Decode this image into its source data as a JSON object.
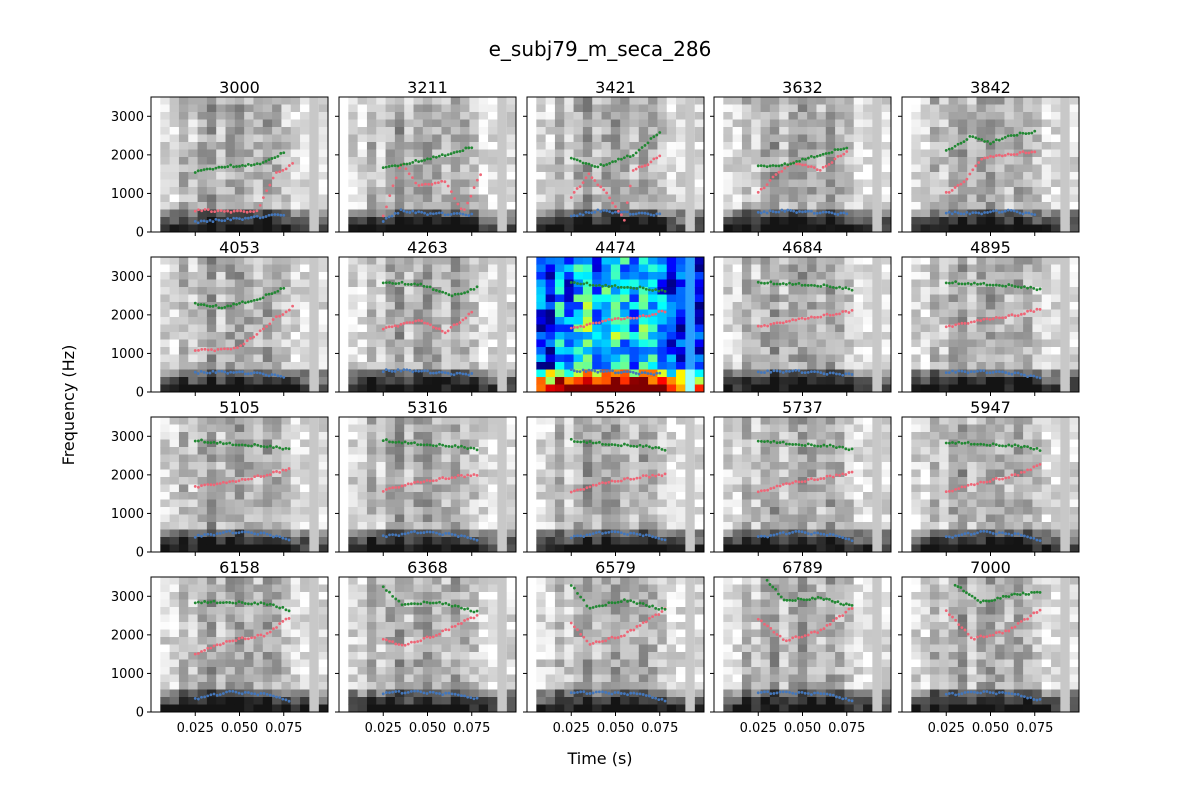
{
  "figure": {
    "title": "e_subj79_m_seca_286",
    "xlabel": "Time (s)",
    "ylabel": "Frequency (Hz)"
  },
  "chart_data": {
    "type": "scatter",
    "layout": "small-multiples 4x5, shared axes",
    "xlim": [
      0.0,
      0.1
    ],
    "ylim": [
      0,
      3500
    ],
    "xticks": [
      "0.025",
      "0.050",
      "0.075"
    ],
    "yticks": [
      "0",
      "1000",
      "2000",
      "3000"
    ],
    "xtick_values": [
      0.025,
      0.05,
      0.075
    ],
    "ytick_values": [
      0,
      1000,
      2000,
      3000
    ],
    "background": "spectrogram (grayscale; panel 4474 in jet colormap)",
    "series_colors": {
      "F1": "#4477bb",
      "F2": "#ee6677",
      "F3": "#228833"
    },
    "highlighted_panel": "4474",
    "panels": [
      {
        "label": "3000",
        "F1": [
          [
            0.025,
            260
          ],
          [
            0.04,
            310
          ],
          [
            0.06,
            380
          ],
          [
            0.075,
            460
          ]
        ],
        "F2": [
          [
            0.025,
            560
          ],
          [
            0.045,
            540
          ],
          [
            0.06,
            520
          ],
          [
            0.07,
            1500
          ],
          [
            0.08,
            1750
          ]
        ],
        "F3": [
          [
            0.025,
            1550
          ],
          [
            0.04,
            1700
          ],
          [
            0.06,
            1750
          ],
          [
            0.075,
            2050
          ]
        ]
      },
      {
        "label": "3211",
        "F1": [
          [
            0.025,
            300
          ],
          [
            0.035,
            550
          ],
          [
            0.05,
            480
          ],
          [
            0.075,
            450
          ]
        ],
        "F2": [
          [
            0.025,
            400
          ],
          [
            0.035,
            1800
          ],
          [
            0.045,
            1200
          ],
          [
            0.06,
            1300
          ],
          [
            0.07,
            500
          ],
          [
            0.08,
            1500
          ]
        ],
        "F3": [
          [
            0.025,
            1650
          ],
          [
            0.04,
            1800
          ],
          [
            0.06,
            2000
          ],
          [
            0.075,
            2200
          ]
        ]
      },
      {
        "label": "3421",
        "F1": [
          [
            0.025,
            400
          ],
          [
            0.04,
            550
          ],
          [
            0.06,
            480
          ],
          [
            0.075,
            450
          ]
        ],
        "F2": [
          [
            0.025,
            900
          ],
          [
            0.035,
            1500
          ],
          [
            0.045,
            1000
          ],
          [
            0.055,
            300
          ],
          [
            0.06,
            1600
          ],
          [
            0.07,
            1800
          ],
          [
            0.075,
            2000
          ]
        ],
        "F3": [
          [
            0.025,
            1900
          ],
          [
            0.04,
            1700
          ],
          [
            0.06,
            2000
          ],
          [
            0.075,
            2600
          ]
        ]
      },
      {
        "label": "3632",
        "F1": [
          [
            0.025,
            500
          ],
          [
            0.04,
            550
          ],
          [
            0.06,
            500
          ],
          [
            0.075,
            470
          ]
        ],
        "F2": [
          [
            0.025,
            1000
          ],
          [
            0.035,
            1500
          ],
          [
            0.045,
            1800
          ],
          [
            0.06,
            1600
          ],
          [
            0.075,
            2100
          ]
        ],
        "F3": [
          [
            0.025,
            1700
          ],
          [
            0.04,
            1750
          ],
          [
            0.06,
            2000
          ],
          [
            0.075,
            2200
          ]
        ]
      },
      {
        "label": "3842",
        "F1": [
          [
            0.025,
            500
          ],
          [
            0.04,
            480
          ],
          [
            0.06,
            550
          ],
          [
            0.075,
            450
          ]
        ],
        "F2": [
          [
            0.025,
            1000
          ],
          [
            0.035,
            1300
          ],
          [
            0.045,
            1900
          ],
          [
            0.06,
            2000
          ],
          [
            0.075,
            2100
          ]
        ],
        "F3": [
          [
            0.025,
            2100
          ],
          [
            0.04,
            2500
          ],
          [
            0.05,
            2300
          ],
          [
            0.06,
            2500
          ],
          [
            0.075,
            2600
          ]
        ]
      },
      {
        "label": "4053",
        "F1": [
          [
            0.025,
            500
          ],
          [
            0.04,
            520
          ],
          [
            0.06,
            480
          ],
          [
            0.075,
            400
          ]
        ],
        "F2": [
          [
            0.025,
            1100
          ],
          [
            0.04,
            1100
          ],
          [
            0.05,
            1150
          ],
          [
            0.06,
            1500
          ],
          [
            0.07,
            1900
          ],
          [
            0.08,
            2200
          ]
        ],
        "F3": [
          [
            0.025,
            2300
          ],
          [
            0.04,
            2200
          ],
          [
            0.06,
            2400
          ],
          [
            0.075,
            2700
          ]
        ]
      },
      {
        "label": "4263",
        "F1": [
          [
            0.025,
            550
          ],
          [
            0.04,
            560
          ],
          [
            0.06,
            480
          ],
          [
            0.075,
            460
          ]
        ],
        "F2": [
          [
            0.025,
            1650
          ],
          [
            0.045,
            1850
          ],
          [
            0.06,
            1550
          ],
          [
            0.075,
            2050
          ]
        ],
        "F3": [
          [
            0.025,
            2850
          ],
          [
            0.045,
            2800
          ],
          [
            0.065,
            2500
          ],
          [
            0.078,
            2700
          ]
        ]
      },
      {
        "label": "4474",
        "F1": [
          [
            0.025,
            550
          ],
          [
            0.04,
            540
          ],
          [
            0.06,
            500
          ],
          [
            0.075,
            460
          ]
        ],
        "F2": [
          [
            0.025,
            1650
          ],
          [
            0.045,
            1850
          ],
          [
            0.065,
            1950
          ],
          [
            0.078,
            2100
          ]
        ],
        "F3": [
          [
            0.025,
            2850
          ],
          [
            0.045,
            2750
          ],
          [
            0.065,
            2700
          ],
          [
            0.078,
            2600
          ]
        ]
      },
      {
        "label": "4684",
        "F1": [
          [
            0.025,
            520
          ],
          [
            0.045,
            540
          ],
          [
            0.065,
            480
          ],
          [
            0.078,
            440
          ]
        ],
        "F2": [
          [
            0.025,
            1700
          ],
          [
            0.045,
            1850
          ],
          [
            0.065,
            2000
          ],
          [
            0.078,
            2100
          ]
        ],
        "F3": [
          [
            0.025,
            2850
          ],
          [
            0.045,
            2800
          ],
          [
            0.065,
            2750
          ],
          [
            0.078,
            2650
          ]
        ]
      },
      {
        "label": "4895",
        "F1": [
          [
            0.025,
            520
          ],
          [
            0.045,
            530
          ],
          [
            0.065,
            480
          ],
          [
            0.078,
            350
          ]
        ],
        "F2": [
          [
            0.025,
            1700
          ],
          [
            0.045,
            1850
          ],
          [
            0.065,
            2000
          ],
          [
            0.078,
            2150
          ]
        ],
        "F3": [
          [
            0.025,
            2850
          ],
          [
            0.045,
            2800
          ],
          [
            0.065,
            2750
          ],
          [
            0.078,
            2650
          ]
        ]
      },
      {
        "label": "5105",
        "F1": [
          [
            0.025,
            400
          ],
          [
            0.045,
            520
          ],
          [
            0.065,
            470
          ],
          [
            0.078,
            300
          ]
        ],
        "F2": [
          [
            0.025,
            1700
          ],
          [
            0.045,
            1800
          ],
          [
            0.065,
            2000
          ],
          [
            0.078,
            2150
          ]
        ],
        "F3": [
          [
            0.025,
            2900
          ],
          [
            0.045,
            2800
          ],
          [
            0.065,
            2750
          ],
          [
            0.078,
            2650
          ]
        ]
      },
      {
        "label": "5316",
        "F1": [
          [
            0.025,
            400
          ],
          [
            0.045,
            520
          ],
          [
            0.065,
            450
          ],
          [
            0.078,
            300
          ]
        ],
        "F2": [
          [
            0.025,
            1600
          ],
          [
            0.045,
            1800
          ],
          [
            0.065,
            1950
          ],
          [
            0.078,
            2000
          ]
        ],
        "F3": [
          [
            0.025,
            2900
          ],
          [
            0.045,
            2800
          ],
          [
            0.065,
            2750
          ],
          [
            0.078,
            2650
          ]
        ]
      },
      {
        "label": "5526",
        "F1": [
          [
            0.025,
            380
          ],
          [
            0.045,
            520
          ],
          [
            0.065,
            450
          ],
          [
            0.078,
            300
          ]
        ],
        "F2": [
          [
            0.025,
            1550
          ],
          [
            0.045,
            1800
          ],
          [
            0.065,
            1950
          ],
          [
            0.078,
            2000
          ]
        ],
        "F3": [
          [
            0.025,
            2900
          ],
          [
            0.045,
            2800
          ],
          [
            0.065,
            2750
          ],
          [
            0.078,
            2650
          ]
        ]
      },
      {
        "label": "5737",
        "F1": [
          [
            0.025,
            380
          ],
          [
            0.045,
            520
          ],
          [
            0.065,
            450
          ],
          [
            0.078,
            300
          ]
        ],
        "F2": [
          [
            0.025,
            1550
          ],
          [
            0.045,
            1800
          ],
          [
            0.065,
            1950
          ],
          [
            0.078,
            2050
          ]
        ],
        "F3": [
          [
            0.025,
            2900
          ],
          [
            0.045,
            2800
          ],
          [
            0.065,
            2750
          ],
          [
            0.078,
            2650
          ]
        ]
      },
      {
        "label": "5947",
        "F1": [
          [
            0.025,
            380
          ],
          [
            0.045,
            520
          ],
          [
            0.065,
            450
          ],
          [
            0.078,
            300
          ]
        ],
        "F2": [
          [
            0.025,
            1550
          ],
          [
            0.045,
            1800
          ],
          [
            0.065,
            2000
          ],
          [
            0.078,
            2250
          ]
        ],
        "F3": [
          [
            0.025,
            2850
          ],
          [
            0.045,
            2800
          ],
          [
            0.065,
            2750
          ],
          [
            0.078,
            2650
          ]
        ]
      },
      {
        "label": "6158",
        "F1": [
          [
            0.025,
            350
          ],
          [
            0.045,
            520
          ],
          [
            0.065,
            450
          ],
          [
            0.078,
            300
          ]
        ],
        "F2": [
          [
            0.025,
            1500
          ],
          [
            0.045,
            1850
          ],
          [
            0.065,
            2000
          ],
          [
            0.078,
            2450
          ]
        ],
        "F3": [
          [
            0.025,
            2850
          ],
          [
            0.045,
            2850
          ],
          [
            0.065,
            2800
          ],
          [
            0.078,
            2650
          ]
        ]
      },
      {
        "label": "6368",
        "F1": [
          [
            0.025,
            500
          ],
          [
            0.045,
            520
          ],
          [
            0.065,
            450
          ],
          [
            0.078,
            350
          ]
        ],
        "F2": [
          [
            0.025,
            1900
          ],
          [
            0.035,
            1700
          ],
          [
            0.055,
            2000
          ],
          [
            0.078,
            2500
          ]
        ],
        "F3": [
          [
            0.025,
            3250
          ],
          [
            0.035,
            2800
          ],
          [
            0.055,
            2850
          ],
          [
            0.078,
            2600
          ]
        ]
      },
      {
        "label": "6579",
        "F1": [
          [
            0.025,
            500
          ],
          [
            0.045,
            500
          ],
          [
            0.065,
            450
          ],
          [
            0.078,
            300
          ]
        ],
        "F2": [
          [
            0.025,
            2300
          ],
          [
            0.035,
            1750
          ],
          [
            0.055,
            2000
          ],
          [
            0.078,
            2650
          ]
        ],
        "F3": [
          [
            0.025,
            3300
          ],
          [
            0.035,
            2700
          ],
          [
            0.055,
            2900
          ],
          [
            0.078,
            2650
          ]
        ]
      },
      {
        "label": "6789",
        "F1": [
          [
            0.025,
            500
          ],
          [
            0.045,
            500
          ],
          [
            0.065,
            450
          ],
          [
            0.078,
            300
          ]
        ],
        "F2": [
          [
            0.025,
            2400
          ],
          [
            0.04,
            1850
          ],
          [
            0.06,
            2100
          ],
          [
            0.078,
            2700
          ]
        ],
        "F3": [
          [
            0.03,
            3400
          ],
          [
            0.04,
            2900
          ],
          [
            0.06,
            2950
          ],
          [
            0.078,
            2750
          ]
        ]
      },
      {
        "label": "7000",
        "F1": [
          [
            0.025,
            450
          ],
          [
            0.045,
            520
          ],
          [
            0.065,
            450
          ],
          [
            0.078,
            300
          ]
        ],
        "F2": [
          [
            0.025,
            2600
          ],
          [
            0.04,
            1900
          ],
          [
            0.06,
            2100
          ],
          [
            0.078,
            2650
          ]
        ],
        "F3": [
          [
            0.03,
            3300
          ],
          [
            0.045,
            2850
          ],
          [
            0.065,
            3050
          ],
          [
            0.078,
            3100
          ]
        ]
      }
    ]
  }
}
